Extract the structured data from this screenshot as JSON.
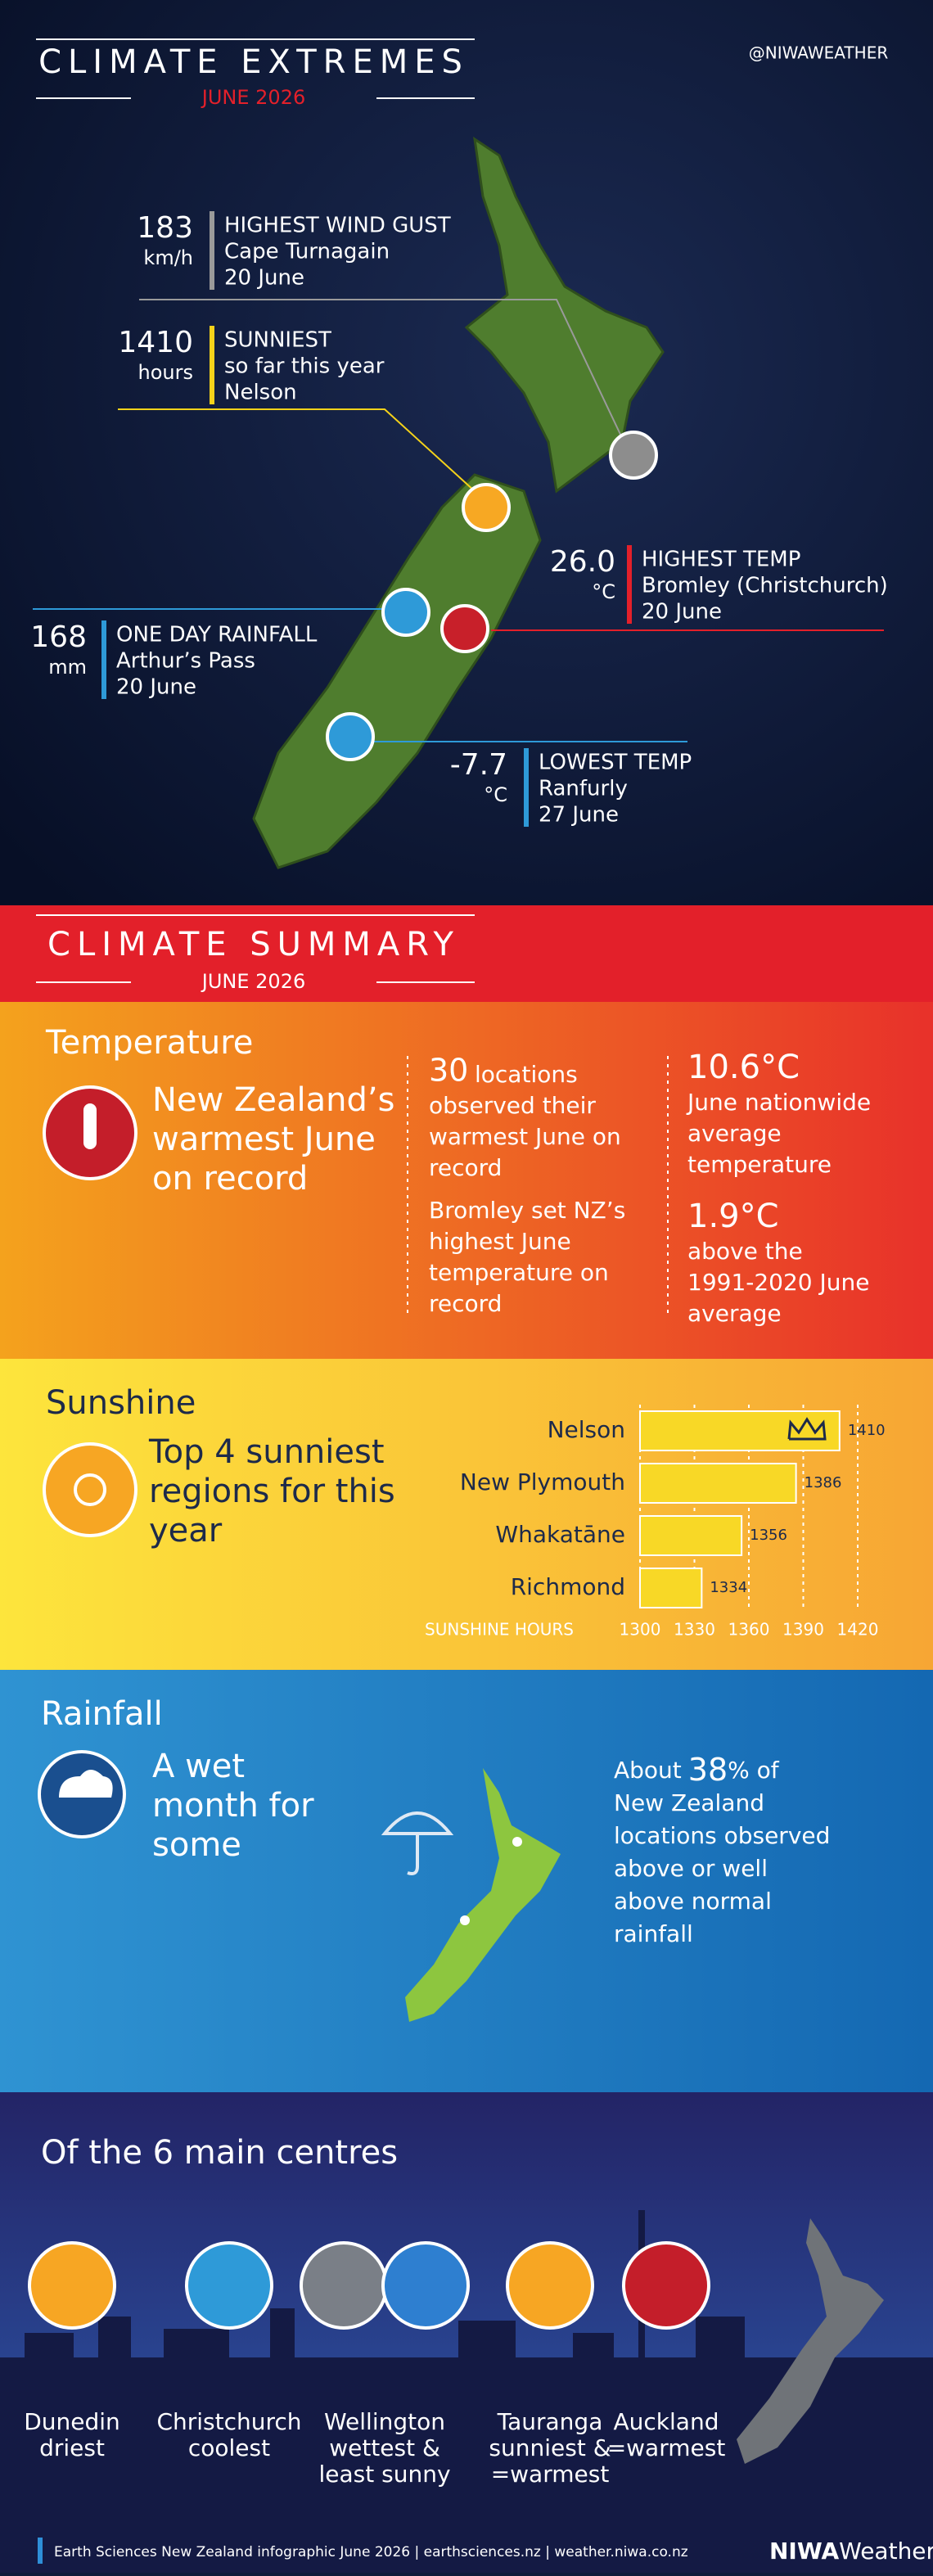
{
  "header": {
    "title": "CLIMATE EXTREMES",
    "subtitle": "JUNE 2026",
    "handle": "@NIWAWEATHER"
  },
  "extremes": [
    {
      "value": "183",
      "unit": "km/h",
      "label": "HIGHEST WIND GUST",
      "lines": [
        "Cape Turnagain",
        "20 June"
      ]
    },
    {
      "value": "1410",
      "unit": "hours",
      "label": "SUNNIEST",
      "lines": [
        "so far this year",
        "Nelson"
      ]
    },
    {
      "value": "26.0",
      "unit": "°C",
      "label": "HIGHEST TEMP",
      "lines": [
        "Bromley (Christchurch)",
        "20 June"
      ]
    },
    {
      "value": "168",
      "unit": "mm",
      "label": "ONE DAY RAINFALL",
      "lines": [
        "Arthur’s Pass",
        "20 June"
      ]
    },
    {
      "value": "-7.7",
      "unit": "°C",
      "label": "LOWEST TEMP",
      "lines": [
        "Ranfurly",
        "27 June"
      ]
    }
  ],
  "summary": {
    "title": "CLIMATE SUMMARY",
    "subtitle": "JUNE 2026"
  },
  "temperature": {
    "heading": "Temperature",
    "headline": [
      "New Zealand’s",
      "warmest June",
      "on record"
    ],
    "count": "30",
    "count_lines": [
      "locations",
      "observed their",
      "warmest June on",
      "record"
    ],
    "bromley": [
      "Bromley set NZ’s",
      "highest June",
      "temperature on",
      "record"
    ],
    "average": "10.6°C",
    "average_lines": [
      "June nationwide",
      "average",
      "temperature"
    ],
    "anomaly": "1.9°C",
    "anomaly_lines": [
      "above the",
      "1991-2020 June",
      "average"
    ]
  },
  "sunshine": {
    "heading": "Sunshine",
    "headline": [
      "Top 4 sunniest",
      "regions for this",
      "year"
    ],
    "chart": {
      "type": "bar",
      "orientation": "horizontal",
      "categories": [
        "Nelson",
        "New Plymouth",
        "Whakatāne",
        "Richmond"
      ],
      "values": [
        1410,
        1386,
        1356,
        1334
      ],
      "color": "#f8d826",
      "x_label": "SUNSHINE HOURS",
      "xlim": [
        1300,
        1420
      ],
      "xticks": [
        1300,
        1330,
        1360,
        1390,
        1420
      ],
      "grid": true
    }
  },
  "rainfall": {
    "heading": "Rainfall",
    "headline": [
      "A wet",
      "month for",
      "some"
    ],
    "prefix": "About",
    "percent": 38,
    "lines": [
      "% of",
      "New Zealand",
      "locations observed",
      "above or well",
      "above normal",
      "rainfall"
    ]
  },
  "centres": {
    "heading": "Of the 6 main centres",
    "items": [
      {
        "city": "Dunedin",
        "lines": [
          "driest"
        ]
      },
      {
        "city": "Christchurch",
        "lines": [
          "coolest"
        ]
      },
      {
        "city": "Wellington",
        "lines": [
          "wettest &",
          "least sunny"
        ]
      },
      {
        "city": "Tauranga",
        "lines": [
          "sunniest &",
          "=warmest"
        ]
      },
      {
        "city": "Auckland",
        "lines": [
          "=warmest"
        ]
      }
    ]
  },
  "footer": {
    "credit": "Earth Sciences New Zealand  infographic  June 2026 | earthsciences.nz | weather.niwa.co.nz",
    "logo": "NIWA",
    "logo_suffix": "Weather"
  }
}
